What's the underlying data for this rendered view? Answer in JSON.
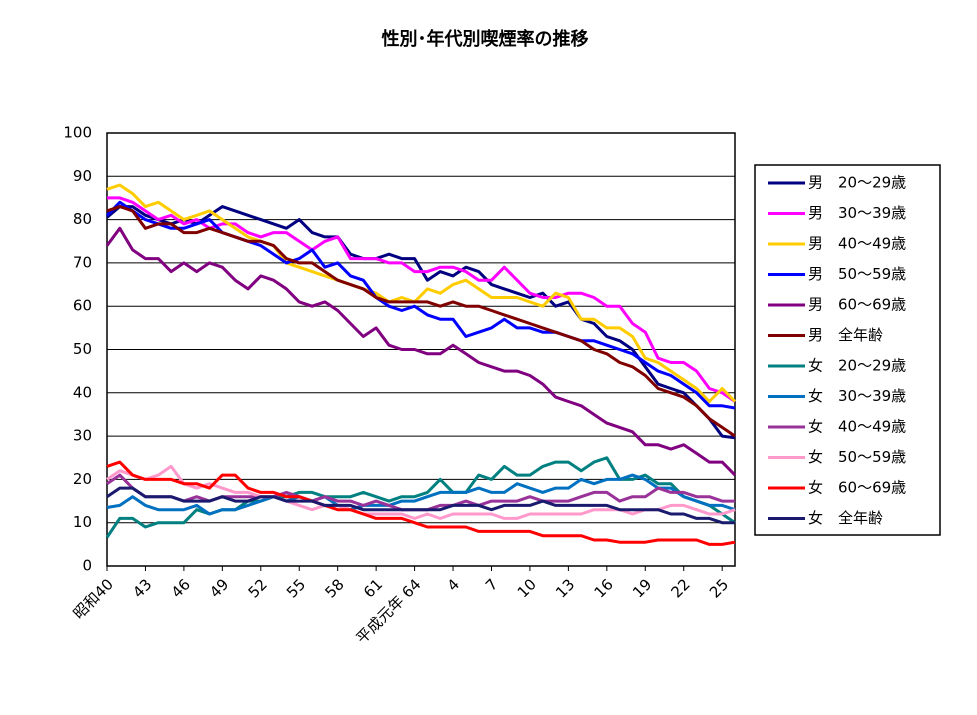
{
  "chart_data": {
    "type": "line",
    "title": "性別･年代別喫煙率の推移",
    "categories": [
      "昭和40",
      null,
      null,
      "43",
      null,
      null,
      "46",
      null,
      null,
      "49",
      null,
      null,
      "52",
      null,
      null,
      "55",
      null,
      null,
      "58",
      null,
      null,
      "61",
      null,
      null,
      "平成元年 64",
      null,
      null,
      "4",
      null,
      null,
      "7",
      null,
      null,
      "10",
      null,
      null,
      "13",
      null,
      null,
      "16",
      null,
      null,
      "19",
      null,
      null,
      "22",
      null,
      null,
      "25",
      null
    ],
    "ylim": [
      0,
      100
    ],
    "yticks": [
      0,
      10,
      20,
      30,
      40,
      50,
      60,
      70,
      80,
      90,
      100
    ],
    "grid": true,
    "legend": "right",
    "series": [
      {
        "name": "男　20～29歳",
        "color": "#000080",
        "values": [
          80.5,
          83,
          83,
          81,
          80,
          79,
          80,
          79,
          81,
          83,
          82,
          81,
          80,
          79,
          78,
          80,
          77,
          76,
          76,
          72,
          71,
          71,
          72,
          71,
          71,
          66,
          68,
          67,
          69,
          68,
          65,
          64,
          63,
          62,
          63,
          60,
          61,
          57,
          56,
          53,
          52,
          50,
          46,
          42,
          41,
          40,
          37,
          34,
          30,
          29.6
        ]
      },
      {
        "name": "男　30～39歳",
        "color": "#ff00ff",
        "values": [
          85,
          85,
          84,
          82,
          80,
          81,
          79,
          80,
          78,
          79,
          79,
          77,
          76,
          77,
          77,
          75,
          73,
          75,
          76,
          71,
          71,
          71,
          70,
          70,
          68,
          68,
          69,
          69,
          68,
          66,
          66,
          69,
          66,
          63,
          62,
          62,
          63,
          63,
          62,
          60,
          60,
          56,
          54,
          48,
          47,
          47,
          45,
          41,
          40,
          38
        ]
      },
      {
        "name": "男　40～49歳",
        "color": "#ffcc00",
        "values": [
          87,
          88,
          86,
          83,
          84,
          82,
          80,
          81,
          82,
          80,
          78,
          76,
          75,
          74,
          70,
          69,
          68,
          67,
          66,
          65,
          64,
          63,
          61,
          62,
          61,
          64,
          63,
          65,
          66,
          64,
          62,
          62,
          62,
          61,
          60,
          63,
          62,
          57,
          57,
          55,
          55,
          53,
          48,
          47,
          45,
          43,
          41,
          38,
          41,
          38
        ]
      },
      {
        "name": "男　50～59歳",
        "color": "#0000ff",
        "values": [
          81,
          84,
          82,
          80,
          79,
          78,
          78,
          79,
          80,
          77,
          76,
          75,
          74,
          72,
          70,
          71,
          73,
          69,
          70,
          67,
          66,
          62,
          60,
          59,
          60,
          58,
          57,
          57,
          53,
          54,
          55,
          57,
          55,
          55,
          54,
          54,
          53,
          52,
          52,
          51,
          50,
          49,
          47,
          45,
          44,
          42,
          40,
          37,
          37,
          36.5
        ]
      },
      {
        "name": "男　60～69歳",
        "color": "#800080",
        "values": [
          74,
          78,
          73,
          71,
          71,
          68,
          70,
          68,
          70,
          69,
          66,
          64,
          67,
          66,
          64,
          61,
          60,
          61,
          59,
          56,
          53,
          55,
          51,
          50,
          50,
          49,
          49,
          51,
          49,
          47,
          46,
          45,
          45,
          44,
          42,
          39,
          38,
          37,
          35,
          33,
          32,
          31,
          28,
          28,
          27,
          28,
          26,
          24,
          24,
          21
        ]
      },
      {
        "name": "男　全年齢",
        "color": "#800000",
        "values": [
          82,
          83,
          82,
          78,
          79,
          79,
          77,
          77,
          78,
          77,
          76,
          75,
          75,
          74,
          71,
          70,
          70,
          68,
          66,
          65,
          64,
          62,
          61,
          61,
          61,
          61,
          60,
          61,
          60,
          60,
          59,
          58,
          57,
          56,
          55,
          54,
          53,
          52,
          50,
          49,
          47,
          46,
          44,
          41,
          40,
          39,
          37,
          34,
          32,
          30
        ]
      },
      {
        "name": "女　20～29歳",
        "color": "#008080",
        "values": [
          6.6,
          11,
          11,
          9,
          10,
          10,
          10,
          13,
          12,
          13,
          13,
          15,
          15,
          16,
          16,
          17,
          17,
          16,
          16,
          16,
          17,
          16,
          15,
          16,
          16,
          17,
          20,
          17,
          17,
          21,
          20,
          23,
          21,
          21,
          23,
          24,
          24,
          22,
          24,
          25,
          20,
          20,
          21,
          19,
          19,
          16,
          15,
          14,
          12,
          10
        ]
      },
      {
        "name": "女　30～39歳",
        "color": "#0070c0",
        "values": [
          13.5,
          14,
          16,
          14,
          13,
          13,
          13,
          14,
          12,
          13,
          13,
          14,
          15,
          16,
          15,
          16,
          15,
          16,
          14,
          13,
          14,
          14,
          14,
          15,
          15,
          16,
          17,
          17,
          17,
          18,
          17,
          17,
          19,
          18,
          17,
          18,
          18,
          20,
          19,
          20,
          20,
          21,
          20,
          18,
          18,
          16,
          15,
          14,
          14,
          13
        ]
      },
      {
        "name": "女　40～49歳",
        "color": "#993399",
        "values": [
          19,
          21,
          18,
          16,
          16,
          16,
          15,
          16,
          15,
          16,
          16,
          16,
          16,
          16,
          17,
          16,
          15,
          16,
          15,
          15,
          14,
          15,
          14,
          13,
          13,
          13,
          14,
          14,
          15,
          14,
          15,
          15,
          15,
          16,
          15,
          15,
          15,
          16,
          17,
          17,
          15,
          16,
          16,
          18,
          17,
          17,
          16,
          16,
          15,
          15
        ]
      },
      {
        "name": "女　50～59歳",
        "color": "#ff99cc",
        "values": [
          20,
          22,
          21,
          20,
          21,
          23,
          19,
          18,
          19,
          18,
          17,
          17,
          16,
          16,
          15,
          14,
          13,
          14,
          14,
          13,
          12,
          12,
          12,
          12,
          11,
          12,
          11,
          12,
          12,
          12,
          12,
          11,
          11,
          12,
          12,
          12,
          12,
          12,
          13,
          13,
          13,
          12,
          13,
          13,
          14,
          14,
          13,
          12,
          12,
          13
        ]
      },
      {
        "name": "女　60～69歳",
        "color": "#ff0000",
        "values": [
          23,
          24,
          21,
          20,
          20,
          20,
          19,
          19,
          18,
          21,
          21,
          18,
          17,
          17,
          16,
          16,
          15,
          14,
          13,
          13,
          12,
          11,
          11,
          11,
          10,
          9,
          9,
          9,
          9,
          8,
          8,
          8,
          8,
          8,
          7,
          7,
          7,
          7,
          6,
          6,
          5.5,
          5.5,
          5.5,
          6,
          6,
          6,
          6,
          5,
          5,
          5.5
        ]
      },
      {
        "name": "女　全年齢",
        "color": "#1a1a6e",
        "values": [
          16,
          18,
          18,
          16,
          16,
          16,
          15,
          15,
          15,
          16,
          15,
          15,
          16,
          16,
          15,
          15,
          15,
          14,
          14,
          14,
          13,
          13,
          13,
          13,
          13,
          13,
          13,
          14,
          14,
          14,
          13,
          14,
          14,
          14,
          15,
          14,
          14,
          14,
          14,
          14,
          13,
          13,
          13,
          13,
          12,
          12,
          11,
          11,
          10,
          10
        ]
      }
    ]
  }
}
